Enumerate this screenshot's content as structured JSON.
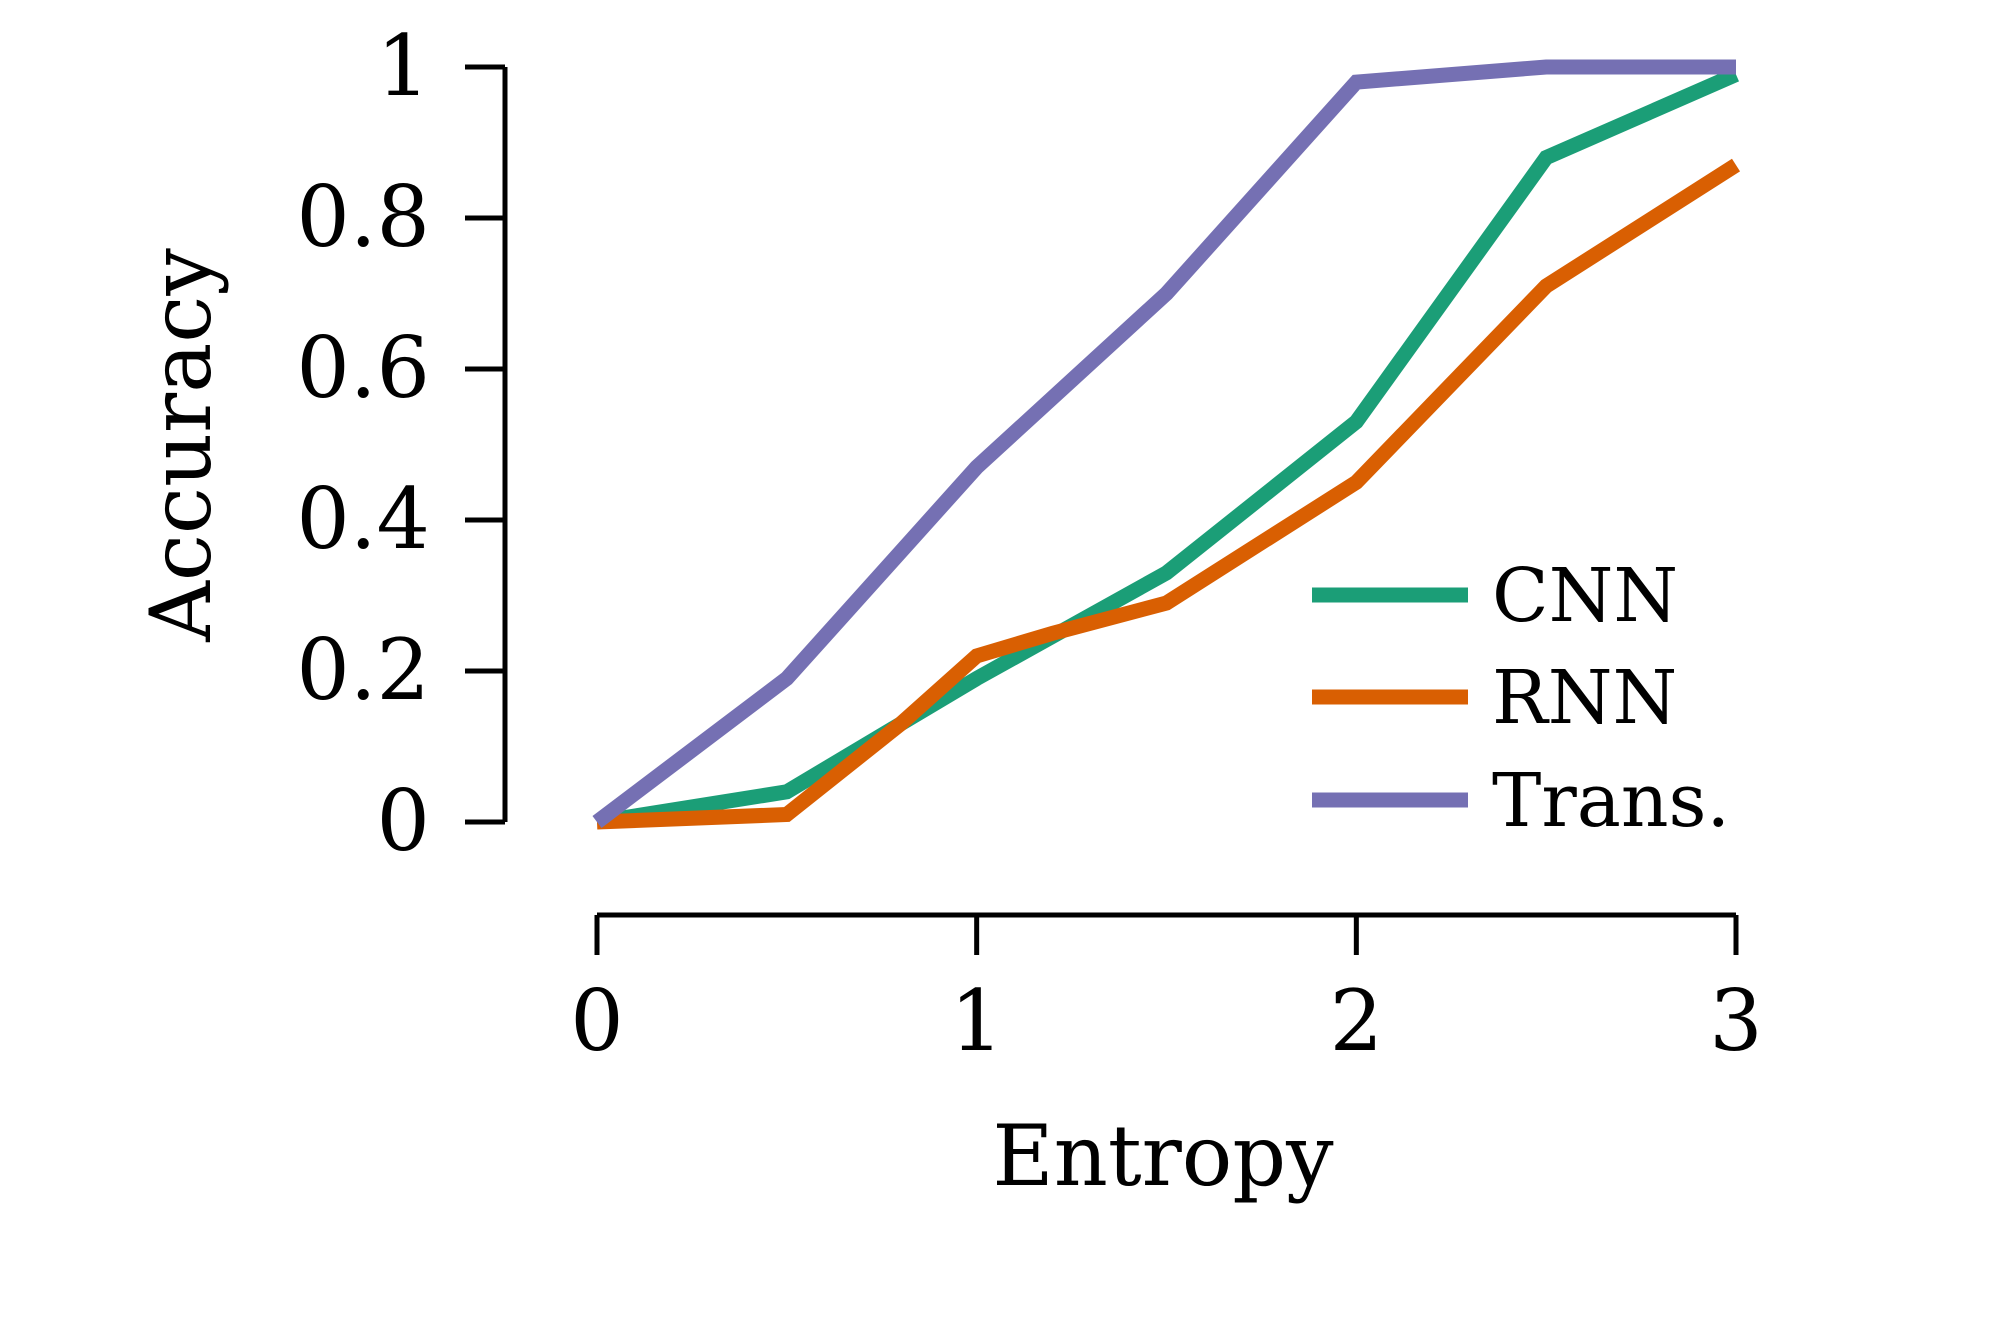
{
  "chart_data": {
    "type": "line",
    "title": "",
    "xlabel": "Entropy",
    "ylabel": "Accuracy",
    "xlim": [
      0,
      3
    ],
    "ylim": [
      0,
      1
    ],
    "x_ticks": [
      0,
      1,
      2,
      3
    ],
    "x_tick_labels": [
      "0",
      "1",
      "2",
      "3"
    ],
    "y_ticks": [
      0,
      0.2,
      0.4,
      0.6,
      0.8,
      1
    ],
    "y_tick_labels": [
      "0",
      "0.2",
      "0.4",
      "0.6",
      "0.8",
      "1"
    ],
    "grid": false,
    "legend_position": "bottom-right",
    "x": [
      0,
      0.5,
      1,
      1.5,
      2,
      2.5,
      3
    ],
    "series": [
      {
        "name": "CNN",
        "color": "#1b9e77",
        "values": [
          0.0,
          0.04,
          0.19,
          0.33,
          0.53,
          0.88,
          0.99
        ]
      },
      {
        "name": "RNN",
        "color": "#d95f02",
        "values": [
          0.0,
          0.01,
          0.22,
          0.29,
          0.45,
          0.71,
          0.87
        ],
        "extra_points": [
          [
            0.8,
            0.13
          ],
          [
            1.2,
            0.25
          ]
        ]
      },
      {
        "name": "Trans.",
        "color": "#7570b3",
        "values": [
          0.0,
          0.19,
          0.47,
          0.7,
          0.98,
          1.0,
          1.0
        ]
      }
    ]
  }
}
